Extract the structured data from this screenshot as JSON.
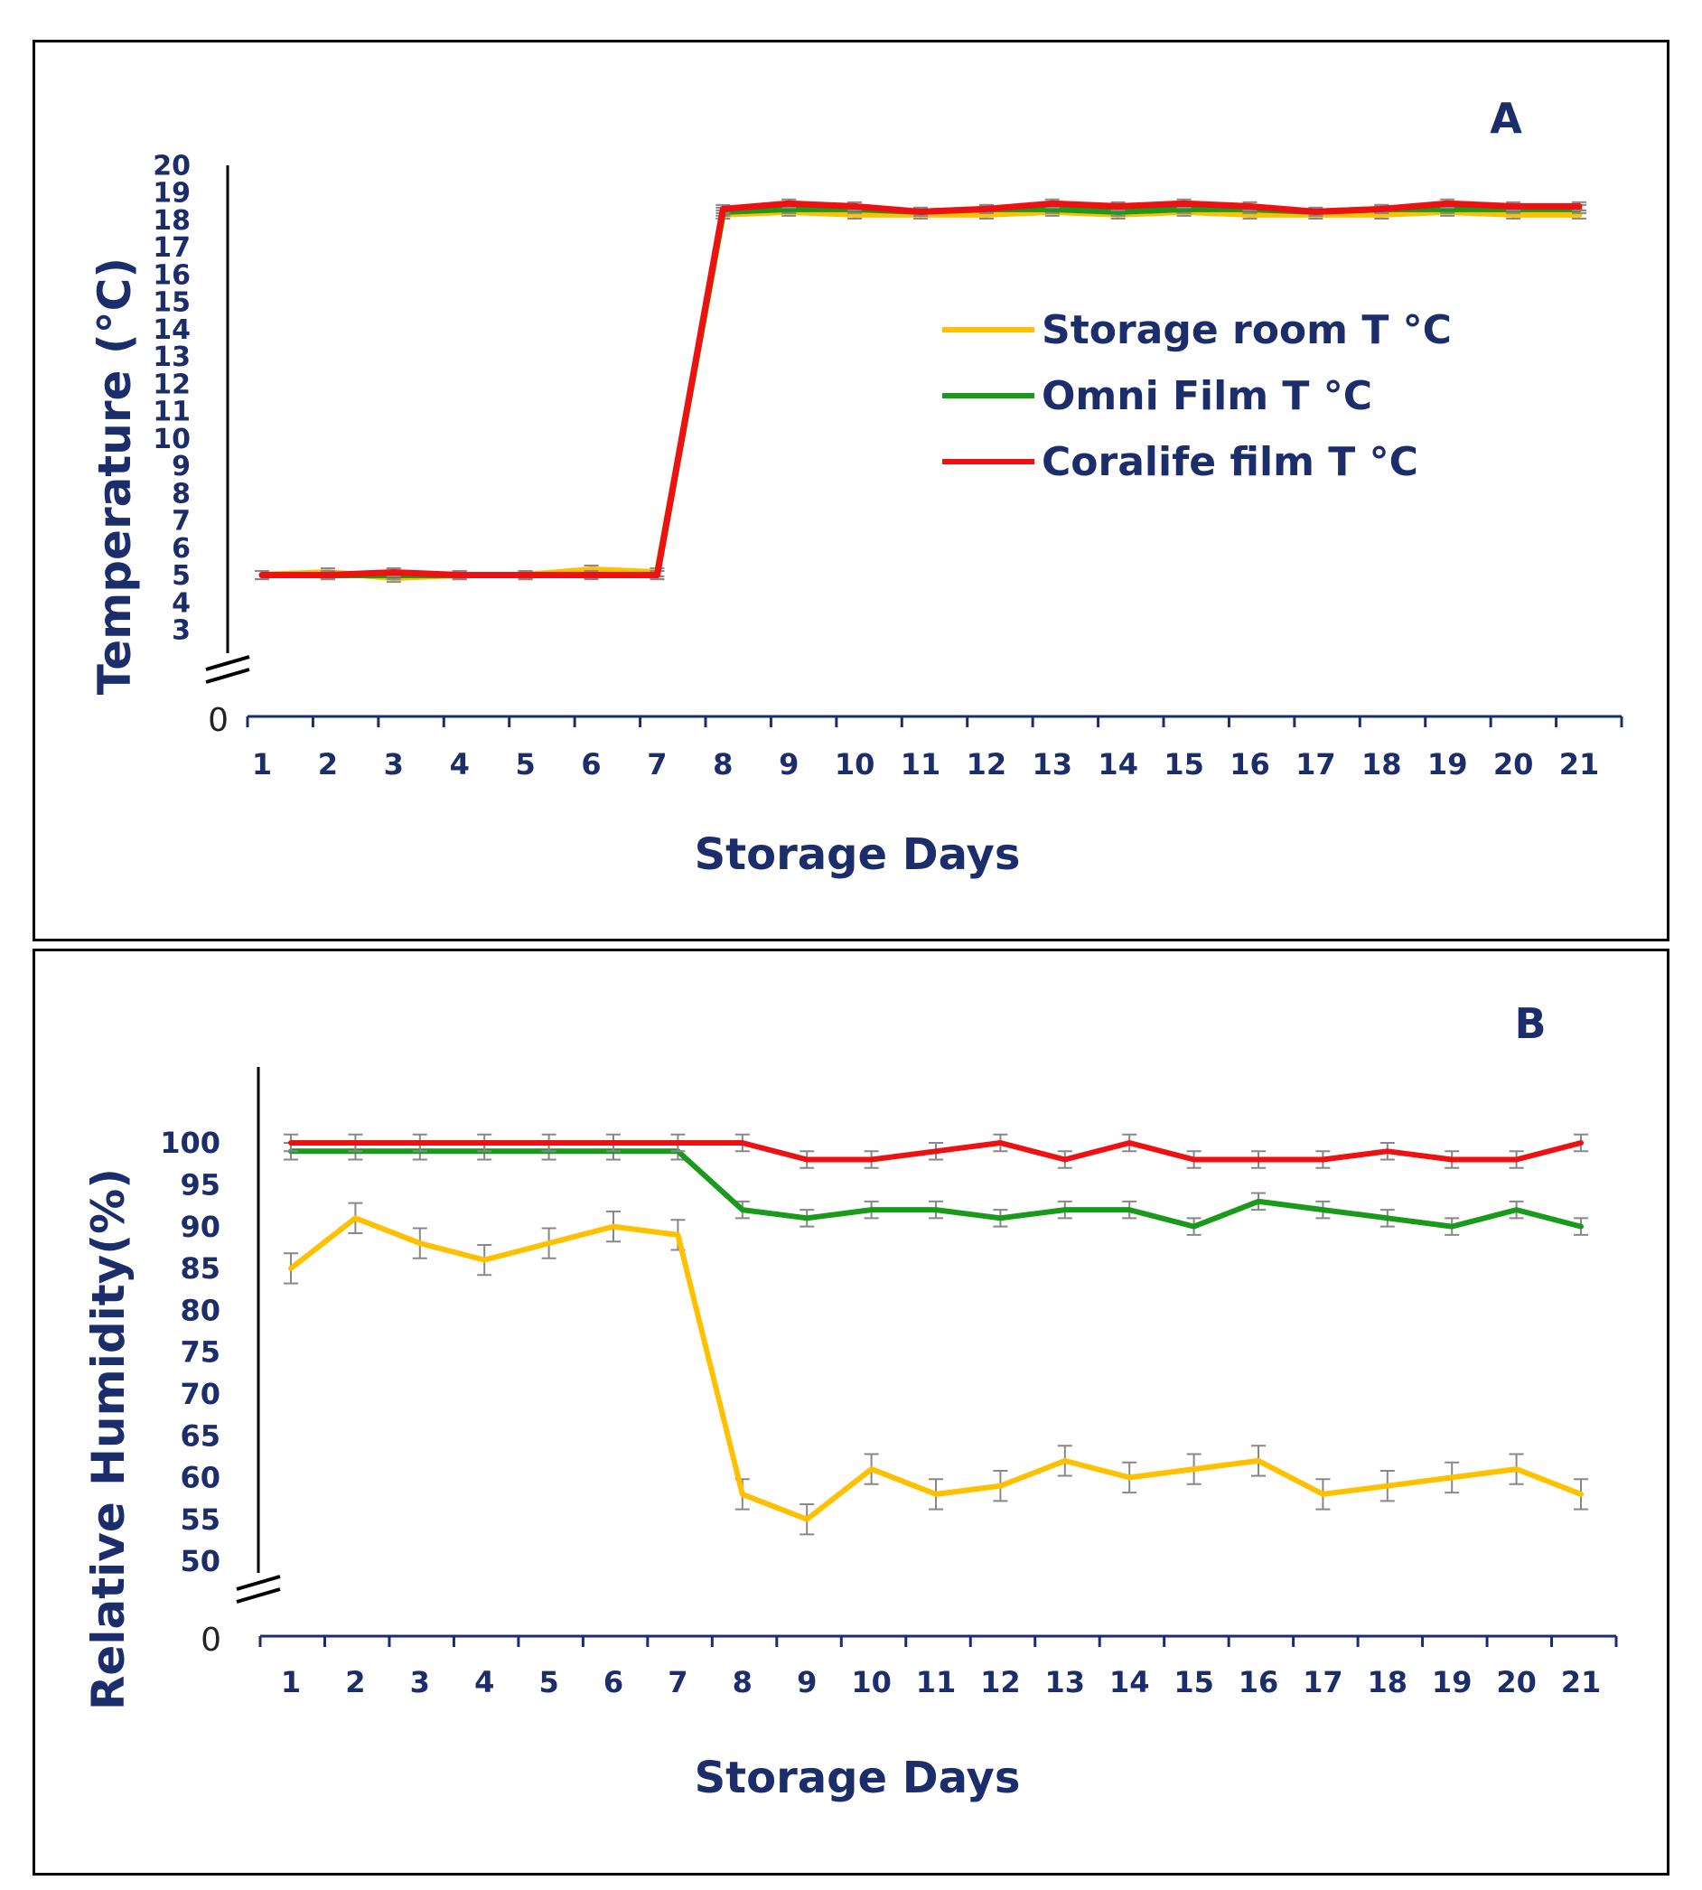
{
  "chart_data": [
    {
      "panel_label": "A",
      "type": "line",
      "x": [
        1,
        2,
        3,
        4,
        5,
        6,
        7,
        8,
        9,
        10,
        11,
        12,
        13,
        14,
        15,
        16,
        17,
        18,
        19,
        20,
        21
      ],
      "x_ticks": [
        "1",
        "2",
        "3",
        "4",
        "5",
        "6",
        "7",
        "8",
        "9",
        "10",
        "11",
        "12",
        "13",
        "14",
        "15",
        "16",
        "17",
        "18",
        "19",
        "20",
        "21"
      ],
      "xlabel": "Storage Days",
      "ylabel": "Temperature (°C)",
      "y_ticks": [
        "3",
        "4",
        "5",
        "6",
        "7",
        "8",
        "9",
        "10",
        "11",
        "12",
        "13",
        "14",
        "15",
        "16",
        "17",
        "18",
        "19",
        "20"
      ],
      "y_zero_label": "0",
      "y_axis_break": true,
      "ylim": [
        3,
        20
      ],
      "legend": {
        "placement": "center-right"
      },
      "series": [
        {
          "name": "Storage room T °C",
          "color": "#ffc000",
          "values": [
            5.0,
            5.1,
            4.9,
            5.0,
            5.0,
            5.2,
            5.1,
            18.2,
            18.3,
            18.2,
            18.2,
            18.2,
            18.3,
            18.2,
            18.3,
            18.2,
            18.2,
            18.2,
            18.3,
            18.2,
            18.2
          ],
          "error": 0.15
        },
        {
          "name": "Omni Film T °C",
          "color": "#1a9a1a",
          "values": [
            5.0,
            5.0,
            5.0,
            5.0,
            5.0,
            5.0,
            5.0,
            18.3,
            18.4,
            18.4,
            18.3,
            18.4,
            18.4,
            18.3,
            18.4,
            18.4,
            18.3,
            18.4,
            18.4,
            18.4,
            18.4
          ],
          "error": 0.15
        },
        {
          "name": "Coralife film T °C",
          "color": "#ee1111",
          "values": [
            5.0,
            5.0,
            5.1,
            5.0,
            5.0,
            5.0,
            5.0,
            18.4,
            18.6,
            18.5,
            18.3,
            18.4,
            18.6,
            18.5,
            18.6,
            18.5,
            18.3,
            18.4,
            18.6,
            18.5,
            18.5
          ],
          "error": 0.15
        }
      ]
    },
    {
      "panel_label": "B",
      "type": "line",
      "x": [
        1,
        2,
        3,
        4,
        5,
        6,
        7,
        8,
        9,
        10,
        11,
        12,
        13,
        14,
        15,
        16,
        17,
        18,
        19,
        20,
        21
      ],
      "x_ticks": [
        "1",
        "2",
        "3",
        "4",
        "5",
        "6",
        "7",
        "8",
        "9",
        "10",
        "11",
        "12",
        "13",
        "14",
        "15",
        "16",
        "17",
        "18",
        "19",
        "20",
        "21"
      ],
      "xlabel": "Storage Days",
      "ylabel": "Relative Humidity(%)",
      "y_ticks": [
        "50",
        "55",
        "60",
        "65",
        "70",
        "75",
        "80",
        "85",
        "90",
        "95",
        "100"
      ],
      "y_zero_label": "0",
      "y_axis_break": true,
      "ylim": [
        50,
        100
      ],
      "series": [
        {
          "name": "Storage room",
          "color": "#ffc000",
          "values": [
            85,
            91,
            88,
            86,
            88,
            90,
            89,
            58,
            55,
            61,
            58,
            59,
            62,
            60,
            61,
            62,
            58,
            59,
            60,
            61,
            58
          ],
          "error": 1.8
        },
        {
          "name": "Omni Film",
          "color": "#1a9a1a",
          "values": [
            99,
            99,
            99,
            99,
            99,
            99,
            99,
            92,
            91,
            92,
            92,
            91,
            92,
            92,
            90,
            93,
            92,
            91,
            90,
            92,
            90
          ],
          "error": 1.0
        },
        {
          "name": "Coralife film",
          "color": "#ee1111",
          "values": [
            100,
            100,
            100,
            100,
            100,
            100,
            100,
            100,
            98,
            98,
            99,
            100,
            98,
            100,
            98,
            98,
            98,
            99,
            98,
            98,
            100
          ],
          "error": 1.0
        }
      ]
    }
  ]
}
